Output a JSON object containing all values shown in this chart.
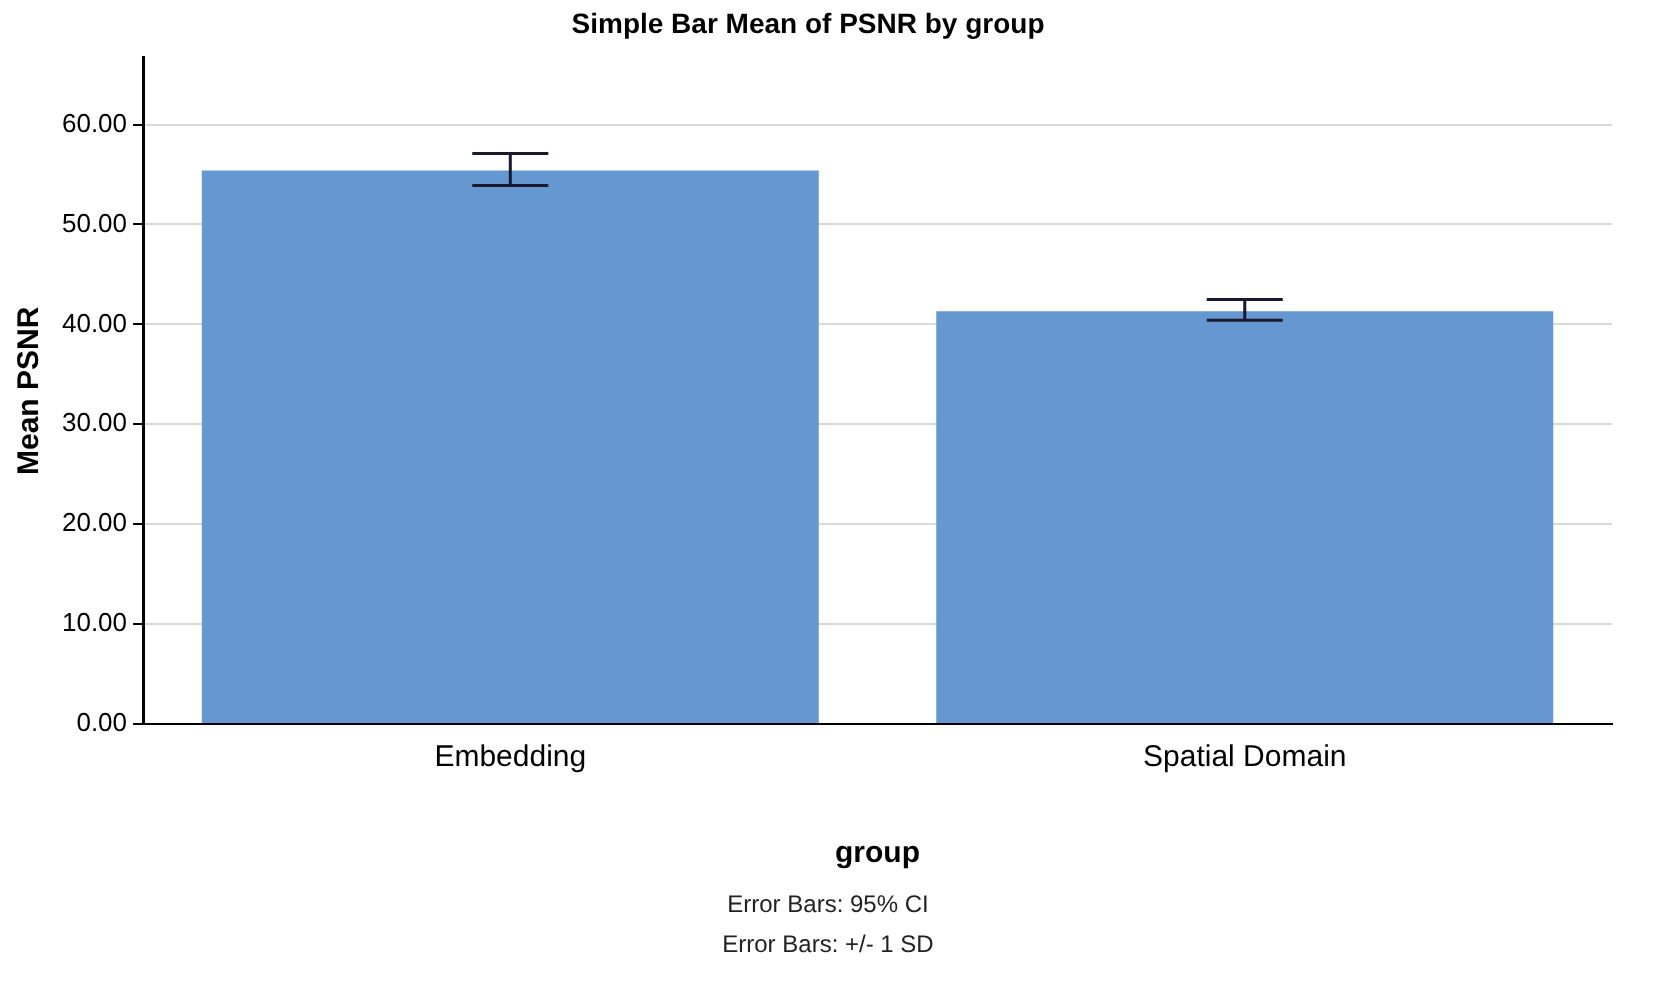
{
  "chart_data": {
    "type": "bar",
    "title": "Simple Bar Mean of PSNR by group",
    "xlabel": "group",
    "ylabel": "Mean PSNR",
    "categories": [
      "Embedding",
      "Spatial Domain"
    ],
    "values": [
      55.4,
      41.3
    ],
    "color": "#6597d1",
    "errors": [
      [
        53.9,
        57.1
      ],
      [
        40.4,
        42.5
      ]
    ],
    "ylim": [
      0,
      66.7
    ],
    "yticks": [
      {
        "value": 0,
        "label": "0.00"
      },
      {
        "value": 10,
        "label": "10.00"
      },
      {
        "value": 20,
        "label": "20.00"
      },
      {
        "value": 30,
        "label": "30.00"
      },
      {
        "value": 40,
        "label": "40.00"
      },
      {
        "value": 50,
        "label": "50.00"
      },
      {
        "value": 60,
        "label": "60.00"
      }
    ],
    "grid": "y",
    "legend": false,
    "annotations": [
      "Error Bars: 95% CI",
      "Error Bars: +/- 1 SD"
    ]
  }
}
